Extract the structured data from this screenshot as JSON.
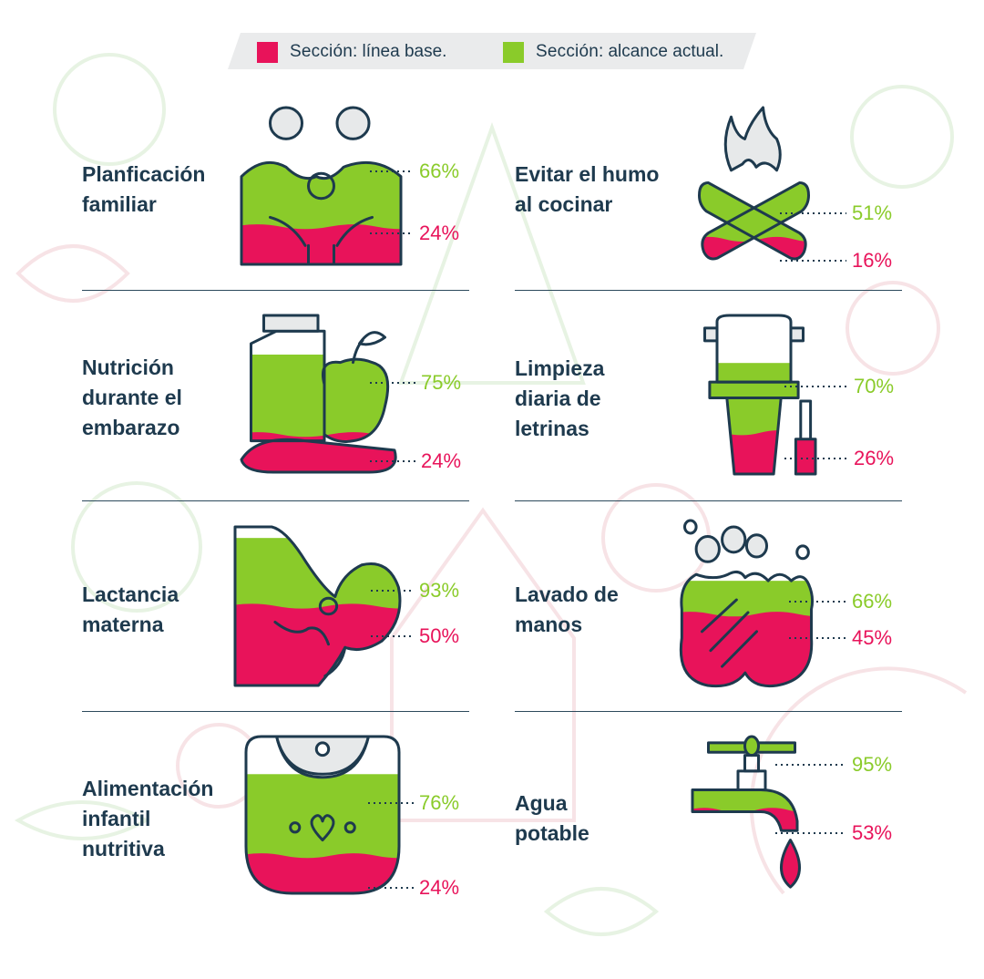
{
  "colors": {
    "baseline": "#e8135a",
    "current": "#8acb2a",
    "ink": "#1e3a4e",
    "cap": "#e7e9ea",
    "legend_band": "#eaebec",
    "bg_doodle": "#f7e3e6",
    "bg_doodle_alt": "#e7f3e3"
  },
  "legend": {
    "baseline": {
      "key": "Sección:",
      "value": "línea base."
    },
    "current": {
      "key": "Sección:",
      "value": "alcance actual."
    }
  },
  "chart_data": {
    "type": "bar",
    "categories": [
      "Planficación familiar",
      "Evitar el humo al cocinar",
      "Nutrición durante el embarazo",
      "Limpieza diaria de letrinas",
      "Lactancia materna",
      "Lavado de manos",
      "Alimentación infantil nutritiva",
      "Agua potable"
    ],
    "series": [
      {
        "name": "Sección: línea base.",
        "values": [
          24,
          16,
          24,
          26,
          50,
          45,
          24,
          53
        ]
      },
      {
        "name": "Sección: alcance actual.",
        "values": [
          66,
          51,
          75,
          70,
          93,
          66,
          76,
          95
        ]
      }
    ],
    "unit": "%",
    "ylim": [
      0,
      100
    ]
  },
  "indicators": [
    {
      "icon": "couple-icon",
      "label_lines": [
        "Planficación",
        "familiar"
      ],
      "current": "66%",
      "baseline": "24%",
      "current_value": 66,
      "baseline_value": 24
    },
    {
      "icon": "campfire-icon",
      "label_lines": [
        "Evitar el humo",
        "al cocinar"
      ],
      "current": "51%",
      "baseline": "16%",
      "current_value": 51,
      "baseline_value": 16
    },
    {
      "icon": "food-icon",
      "label_lines": [
        "Nutrición",
        "durante el",
        "embarazo"
      ],
      "current": "75%",
      "baseline": "24%",
      "current_value": 75,
      "baseline_value": 24
    },
    {
      "icon": "toilet-icon",
      "label_lines": [
        "Limpieza",
        "diaria de",
        "letrinas"
      ],
      "current": "70%",
      "baseline": "26%",
      "current_value": 70,
      "baseline_value": 26
    },
    {
      "icon": "breastfeeding-icon",
      "label_lines": [
        "Lactancia",
        "materna"
      ],
      "current": "93%",
      "baseline": "50%",
      "current_value": 93,
      "baseline_value": 50
    },
    {
      "icon": "handwashing-icon",
      "label_lines": [
        "Lavado de",
        "manos"
      ],
      "current": "66%",
      "baseline": "45%",
      "current_value": 66,
      "baseline_value": 45
    },
    {
      "icon": "bib-icon",
      "label_lines": [
        "Alimentación",
        "infantil",
        "nutritiva"
      ],
      "current": "76%",
      "baseline": "24%",
      "current_value": 76,
      "baseline_value": 24
    },
    {
      "icon": "faucet-icon",
      "label_lines": [
        "Agua",
        "potable"
      ],
      "current": "95%",
      "baseline": "53%",
      "current_value": 95,
      "baseline_value": 53
    }
  ]
}
